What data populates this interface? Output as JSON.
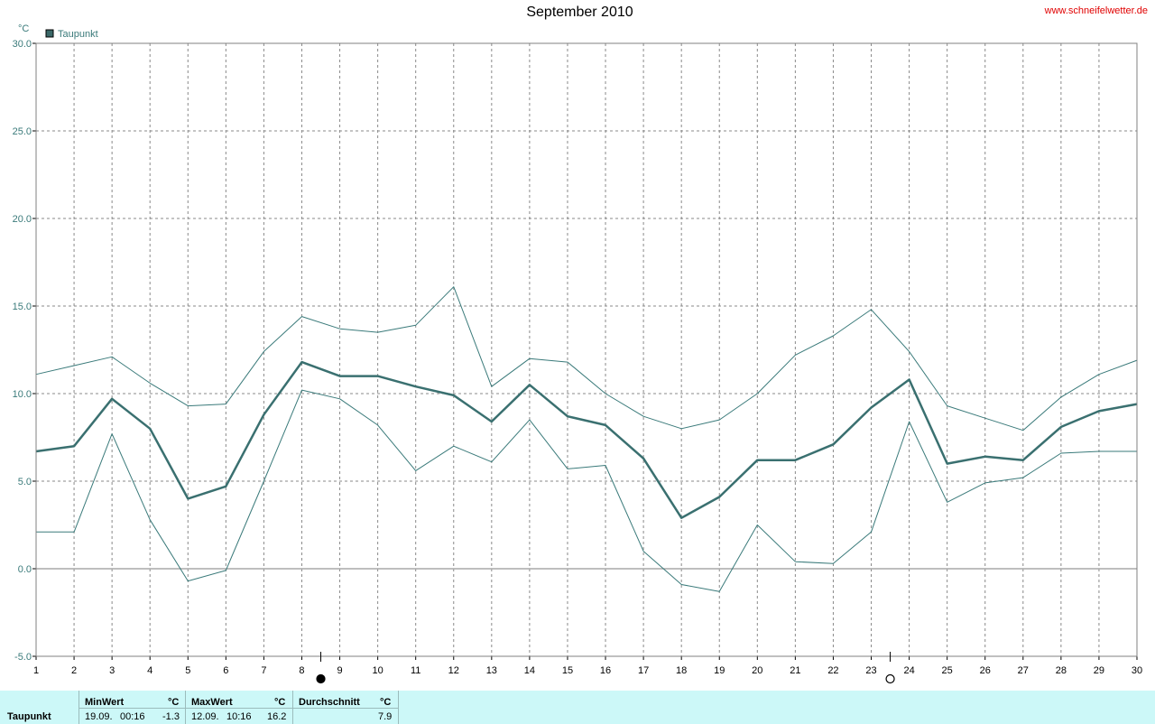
{
  "header": {
    "title": "September 2010",
    "site": "www.schneifelwetter.de"
  },
  "chart_data": {
    "type": "line",
    "unit": "°C",
    "legend": [
      "Taupunkt"
    ],
    "legend_position": "top-left",
    "ylim": [
      -5,
      30
    ],
    "y_ticks": [
      "-5.0",
      "0.0",
      "5.0",
      "10.0",
      "15.0",
      "20.0",
      "25.0",
      "30.0"
    ],
    "x": [
      1,
      2,
      3,
      4,
      5,
      6,
      7,
      8,
      9,
      10,
      11,
      12,
      13,
      14,
      15,
      16,
      17,
      18,
      19,
      20,
      21,
      22,
      23,
      24,
      25,
      26,
      27,
      28,
      29,
      30
    ],
    "grid": true,
    "series": [
      {
        "name": "Taupunkt",
        "values": [
          6.7,
          7.0,
          9.7,
          8.0,
          4.0,
          4.7,
          8.8,
          11.8,
          11.0,
          11.0,
          10.4,
          9.9,
          8.4,
          10.5,
          8.7,
          8.2,
          6.3,
          2.9,
          4.1,
          6.2,
          6.2,
          7.1,
          9.2,
          10.8,
          6.0,
          6.4,
          6.2,
          8.1,
          9.0,
          9.4
        ],
        "color": "#3a7070",
        "bold": true
      },
      {
        "values": [
          11.1,
          11.6,
          12.1,
          10.6,
          9.3,
          9.4,
          12.4,
          14.4,
          13.7,
          13.5,
          13.9,
          16.1,
          10.4,
          12.0,
          11.8,
          10.0,
          8.7,
          8.0,
          8.5,
          10.0,
          12.2,
          13.3,
          14.8,
          12.4,
          9.3,
          8.6,
          7.9,
          9.8,
          11.1,
          11.9
        ],
        "color": "#3a7a7a",
        "bold": false
      },
      {
        "values": [
          2.1,
          2.1,
          7.7,
          2.8,
          -0.7,
          -0.1,
          5.0,
          10.2,
          9.7,
          8.2,
          5.6,
          7.0,
          6.1,
          8.5,
          5.7,
          5.9,
          1.0,
          -0.9,
          -1.3,
          2.5,
          0.4,
          0.3,
          2.1,
          8.4,
          3.8,
          4.9,
          5.2,
          6.6,
          6.7,
          6.7
        ],
        "color": "#3a7a7a",
        "bold": false
      }
    ],
    "moon_phases": [
      {
        "x": 8.5,
        "phase": "new"
      },
      {
        "x": 23.5,
        "phase": "full"
      }
    ]
  },
  "footer": {
    "row_label": "Taupunkt",
    "min": {
      "label": "MinWert",
      "unit": "°C",
      "date": "19.09.",
      "time": "00:16",
      "value": "-1.3"
    },
    "max": {
      "label": "MaxWert",
      "unit": "°C",
      "date": "12.09.",
      "time": "10:16",
      "value": "16.2"
    },
    "avg": {
      "label": "Durchschnitt",
      "unit": "°C",
      "value": "7.9"
    }
  }
}
